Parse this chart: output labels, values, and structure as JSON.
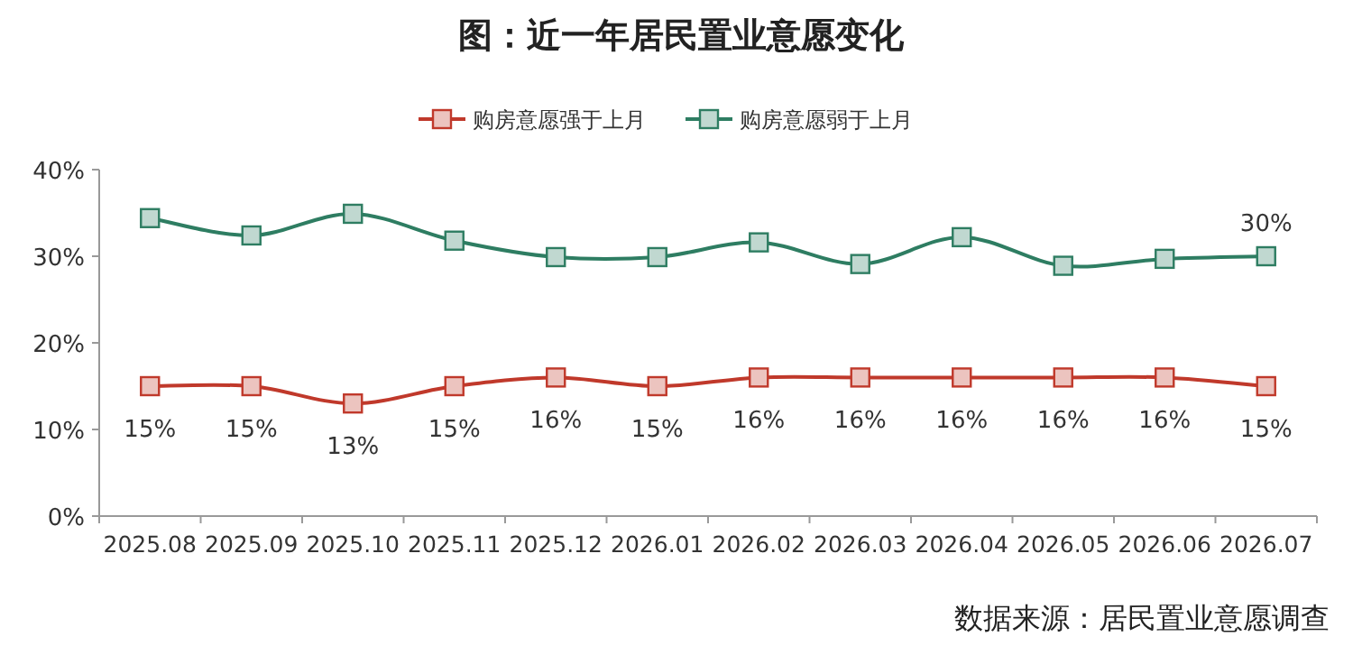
{
  "chart_data": {
    "type": "line",
    "title": "图：近一年居民置业意愿变化",
    "categories": [
      "2025.08",
      "2025.09",
      "2025.10",
      "2025.11",
      "2025.12",
      "2026.01",
      "2026.02",
      "2026.03",
      "2026.04",
      "2026.05",
      "2026.06",
      "2026.07"
    ],
    "series": [
      {
        "name": "购房意愿强于上月",
        "color": "#c0392b",
        "values": [
          15,
          15,
          13,
          15,
          16,
          15,
          16,
          16,
          16,
          16,
          16,
          15
        ],
        "value_labels": [
          "15%",
          "15%",
          "13%",
          "15%",
          "16%",
          "15%",
          "16%",
          "16%",
          "16%",
          "16%",
          "16%",
          "15%"
        ]
      },
      {
        "name": "购房意愿弱于上月",
        "color": "#2e7d62",
        "values": [
          34.4,
          32.4,
          34.9,
          31.8,
          29.9,
          29.9,
          31.6,
          29.1,
          32.2,
          28.9,
          29.7,
          30
        ],
        "value_labels": [
          null,
          null,
          null,
          null,
          null,
          null,
          null,
          null,
          null,
          null,
          null,
          "30%"
        ]
      }
    ],
    "ylim": [
      0,
      40
    ],
    "yticks": [
      {
        "value": 0,
        "label": "0%"
      },
      {
        "value": 10,
        "label": "10%"
      },
      {
        "value": 20,
        "label": "20%"
      },
      {
        "value": 30,
        "label": "30%"
      },
      {
        "value": 40,
        "label": "40%"
      }
    ],
    "marker": "square",
    "legend": "top",
    "grid": false,
    "annotations": [
      "数据来源：居民置业意愿调查"
    ]
  }
}
